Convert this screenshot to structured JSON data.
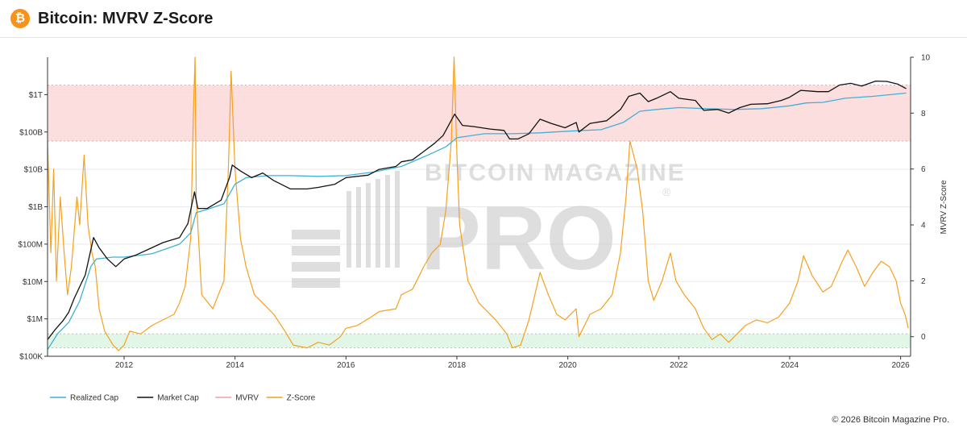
{
  "header": {
    "logo_glyph": "₿",
    "logo_icon": "bitcoin-logo-icon",
    "title": "Bitcoin: MVRV Z-Score"
  },
  "watermark": {
    "line1": "BITCOIN MAGAZINE",
    "line2": "PRO",
    "mark": "®"
  },
  "footer": {
    "copyright": "© 2026 Bitcoin Magazine Pro."
  },
  "colors": {
    "realized_cap": "#3fb1d6",
    "market_cap": "#111111",
    "mvrv": "#f2a0a8",
    "z_score": "#f5a020",
    "red_band": "#fddede",
    "green_band": "#e2f6e8",
    "grid": "#e9e9e9",
    "watermark": "#bfbfbf"
  },
  "chart_data": {
    "type": "line",
    "x_axis": {
      "ticks": [
        2012,
        2014,
        2016,
        2018,
        2020,
        2022,
        2024,
        2026
      ],
      "range": [
        2010.62,
        2026.18
      ]
    },
    "y_left": {
      "scale": "log",
      "tick_values": [
        100000,
        1000000,
        10000000,
        100000000,
        1000000000,
        10000000000,
        100000000000,
        1000000000000
      ],
      "tick_labels": [
        "$100K",
        "$1M",
        "$10M",
        "$100M",
        "$1B",
        "$10B",
        "$100B",
        "$1T"
      ],
      "range": [
        100000,
        10000000000000
      ]
    },
    "y_right": {
      "label": "MVRV Z-Score",
      "tick_values": [
        0,
        2,
        4,
        6,
        8,
        10
      ],
      "tick_labels": [
        "0",
        "2",
        "4",
        "6",
        "8",
        "10"
      ],
      "range": [
        -0.7,
        10
      ]
    },
    "bands": [
      {
        "name": "overvalued zone",
        "axis": "right",
        "from": 7.0,
        "to": 9.0,
        "color": "#fddede"
      },
      {
        "name": "undervalued zone",
        "axis": "right",
        "from": -0.4,
        "to": 0.1,
        "color": "#e2f6e8"
      }
    ],
    "legend": {
      "placement": "bottom-left",
      "entries": [
        {
          "label": "Realized Cap",
          "color": "#3fb1d6"
        },
        {
          "label": "Market Cap",
          "color": "#111111"
        },
        {
          "label": "MVRV",
          "color": "#f2a0a8"
        },
        {
          "label": "Z-Score",
          "color": "#f5a020"
        }
      ]
    },
    "series": [
      {
        "name": "Market Cap",
        "axis": "left",
        "color": "#111111",
        "points": [
          [
            2010.62,
            280000
          ],
          [
            2010.75,
            500000
          ],
          [
            2010.9,
            900000
          ],
          [
            2011.0,
            1500000
          ],
          [
            2011.1,
            3500000
          ],
          [
            2011.3,
            15000000
          ],
          [
            2011.45,
            150000000
          ],
          [
            2011.55,
            80000000
          ],
          [
            2011.7,
            40000000
          ],
          [
            2011.85,
            25000000
          ],
          [
            2012.0,
            40000000
          ],
          [
            2012.2,
            50000000
          ],
          [
            2012.5,
            80000000
          ],
          [
            2012.7,
            110000000
          ],
          [
            2013.0,
            150000000
          ],
          [
            2013.15,
            350000000
          ],
          [
            2013.27,
            2500000000
          ],
          [
            2013.33,
            900000000
          ],
          [
            2013.5,
            900000000
          ],
          [
            2013.75,
            1500000000
          ],
          [
            2013.9,
            6000000000
          ],
          [
            2013.95,
            13000000000
          ],
          [
            2014.1,
            9000000000
          ],
          [
            2014.3,
            6000000000
          ],
          [
            2014.5,
            8000000000
          ],
          [
            2014.7,
            5000000000
          ],
          [
            2015.0,
            3000000000
          ],
          [
            2015.3,
            3000000000
          ],
          [
            2015.5,
            3300000000
          ],
          [
            2015.8,
            4000000000
          ],
          [
            2016.0,
            6000000000
          ],
          [
            2016.4,
            7000000000
          ],
          [
            2016.6,
            10000000000
          ],
          [
            2016.9,
            12000000000
          ],
          [
            2017.0,
            16000000000
          ],
          [
            2017.2,
            18000000000
          ],
          [
            2017.4,
            30000000000
          ],
          [
            2017.6,
            50000000000
          ],
          [
            2017.75,
            80000000000
          ],
          [
            2017.96,
            300000000000
          ],
          [
            2018.1,
            150000000000
          ],
          [
            2018.3,
            140000000000
          ],
          [
            2018.6,
            120000000000
          ],
          [
            2018.85,
            110000000000
          ],
          [
            2018.95,
            65000000000
          ],
          [
            2019.1,
            65000000000
          ],
          [
            2019.3,
            90000000000
          ],
          [
            2019.5,
            220000000000
          ],
          [
            2019.7,
            170000000000
          ],
          [
            2019.95,
            130000000000
          ],
          [
            2020.15,
            180000000000
          ],
          [
            2020.2,
            100000000000
          ],
          [
            2020.4,
            170000000000
          ],
          [
            2020.7,
            200000000000
          ],
          [
            2020.95,
            400000000000
          ],
          [
            2021.1,
            900000000000
          ],
          [
            2021.3,
            1100000000000
          ],
          [
            2021.45,
            650000000000
          ],
          [
            2021.6,
            800000000000
          ],
          [
            2021.85,
            1200000000000
          ],
          [
            2022.0,
            800000000000
          ],
          [
            2022.3,
            700000000000
          ],
          [
            2022.45,
            380000000000
          ],
          [
            2022.7,
            400000000000
          ],
          [
            2022.9,
            320000000000
          ],
          [
            2023.1,
            450000000000
          ],
          [
            2023.3,
            550000000000
          ],
          [
            2023.6,
            570000000000
          ],
          [
            2023.85,
            700000000000
          ],
          [
            2024.0,
            850000000000
          ],
          [
            2024.2,
            1300000000000
          ],
          [
            2024.5,
            1200000000000
          ],
          [
            2024.7,
            1200000000000
          ],
          [
            2024.9,
            1800000000000
          ],
          [
            2025.1,
            2000000000000
          ],
          [
            2025.3,
            1700000000000
          ],
          [
            2025.55,
            2300000000000
          ],
          [
            2025.75,
            2250000000000
          ],
          [
            2025.95,
            1900000000000
          ],
          [
            2026.1,
            1450000000000
          ]
        ]
      },
      {
        "name": "Realized Cap",
        "axis": "left",
        "color": "#3fb1d6",
        "points": [
          [
            2010.62,
            150000
          ],
          [
            2010.8,
            400000
          ],
          [
            2011.0,
            800000
          ],
          [
            2011.2,
            3000000
          ],
          [
            2011.4,
            25000000
          ],
          [
            2011.5,
            40000000
          ],
          [
            2011.8,
            45000000
          ],
          [
            2012.0,
            45000000
          ],
          [
            2012.5,
            55000000
          ],
          [
            2013.0,
            100000000
          ],
          [
            2013.2,
            200000000
          ],
          [
            2013.3,
            700000000
          ],
          [
            2013.5,
            850000000
          ],
          [
            2013.8,
            1200000000
          ],
          [
            2014.0,
            4000000000
          ],
          [
            2014.2,
            6000000000
          ],
          [
            2014.6,
            6800000000
          ],
          [
            2015.0,
            6800000000
          ],
          [
            2015.5,
            6500000000
          ],
          [
            2016.0,
            6800000000
          ],
          [
            2016.5,
            8500000000
          ],
          [
            2017.0,
            12000000000
          ],
          [
            2017.5,
            25000000000
          ],
          [
            2017.8,
            40000000000
          ],
          [
            2018.0,
            70000000000
          ],
          [
            2018.5,
            90000000000
          ],
          [
            2019.0,
            90000000000
          ],
          [
            2019.5,
            95000000000
          ],
          [
            2020.0,
            105000000000
          ],
          [
            2020.6,
            115000000000
          ],
          [
            2021.0,
            180000000000
          ],
          [
            2021.3,
            360000000000
          ],
          [
            2021.6,
            400000000000
          ],
          [
            2022.0,
            450000000000
          ],
          [
            2022.5,
            420000000000
          ],
          [
            2023.0,
            400000000000
          ],
          [
            2023.5,
            420000000000
          ],
          [
            2024.0,
            500000000000
          ],
          [
            2024.3,
            600000000000
          ],
          [
            2024.6,
            620000000000
          ],
          [
            2025.0,
            800000000000
          ],
          [
            2025.5,
            900000000000
          ],
          [
            2026.1,
            1100000000000
          ]
        ]
      },
      {
        "name": "Z-Score",
        "axis": "right",
        "color": "#f5a020",
        "points": [
          [
            2010.62,
            7.0
          ],
          [
            2010.68,
            3.0
          ],
          [
            2010.73,
            6.0
          ],
          [
            2010.78,
            2.0
          ],
          [
            2010.85,
            5.0
          ],
          [
            2010.92,
            3.0
          ],
          [
            2010.98,
            1.5
          ],
          [
            2011.05,
            2.5
          ],
          [
            2011.15,
            5.0
          ],
          [
            2011.2,
            4.0
          ],
          [
            2011.28,
            6.5
          ],
          [
            2011.35,
            4.0
          ],
          [
            2011.42,
            3.0
          ],
          [
            2011.48,
            2.5
          ],
          [
            2011.55,
            1.0
          ],
          [
            2011.65,
            0.2
          ],
          [
            2011.8,
            -0.3
          ],
          [
            2011.9,
            -0.5
          ],
          [
            2012.0,
            -0.3
          ],
          [
            2012.1,
            0.2
          ],
          [
            2012.3,
            0.1
          ],
          [
            2012.5,
            0.4
          ],
          [
            2012.7,
            0.6
          ],
          [
            2012.9,
            0.8
          ],
          [
            2013.0,
            1.2
          ],
          [
            2013.1,
            1.8
          ],
          [
            2013.2,
            3.5
          ],
          [
            2013.25,
            8.0
          ],
          [
            2013.28,
            10.0
          ],
          [
            2013.3,
            5.0
          ],
          [
            2013.4,
            1.5
          ],
          [
            2013.6,
            1.0
          ],
          [
            2013.8,
            2.0
          ],
          [
            2013.88,
            6.0
          ],
          [
            2013.93,
            9.5
          ],
          [
            2014.0,
            6.0
          ],
          [
            2014.1,
            3.5
          ],
          [
            2014.2,
            2.5
          ],
          [
            2014.35,
            1.5
          ],
          [
            2014.5,
            1.2
          ],
          [
            2014.7,
            0.8
          ],
          [
            2014.9,
            0.2
          ],
          [
            2015.05,
            -0.3
          ],
          [
            2015.3,
            -0.4
          ],
          [
            2015.5,
            -0.2
          ],
          [
            2015.7,
            -0.3
          ],
          [
            2015.9,
            0.0
          ],
          [
            2016.0,
            0.3
          ],
          [
            2016.2,
            0.4
          ],
          [
            2016.45,
            0.7
          ],
          [
            2016.6,
            0.9
          ],
          [
            2016.9,
            1.0
          ],
          [
            2017.0,
            1.5
          ],
          [
            2017.2,
            1.7
          ],
          [
            2017.4,
            2.5
          ],
          [
            2017.55,
            3.0
          ],
          [
            2017.7,
            3.3
          ],
          [
            2017.8,
            4.5
          ],
          [
            2017.9,
            7.0
          ],
          [
            2017.95,
            10.0
          ],
          [
            2018.0,
            6.5
          ],
          [
            2018.05,
            4.0
          ],
          [
            2018.2,
            2.0
          ],
          [
            2018.4,
            1.2
          ],
          [
            2018.7,
            0.6
          ],
          [
            2018.9,
            0.1
          ],
          [
            2019.0,
            -0.4
          ],
          [
            2019.15,
            -0.3
          ],
          [
            2019.3,
            0.6
          ],
          [
            2019.5,
            2.3
          ],
          [
            2019.65,
            1.5
          ],
          [
            2019.8,
            0.8
          ],
          [
            2019.95,
            0.6
          ],
          [
            2020.15,
            1.0
          ],
          [
            2020.2,
            0.0
          ],
          [
            2020.4,
            0.8
          ],
          [
            2020.6,
            1.0
          ],
          [
            2020.8,
            1.5
          ],
          [
            2020.95,
            3.0
          ],
          [
            2021.05,
            5.0
          ],
          [
            2021.12,
            7.0
          ],
          [
            2021.25,
            6.0
          ],
          [
            2021.35,
            4.5
          ],
          [
            2021.45,
            2.0
          ],
          [
            2021.55,
            1.3
          ],
          [
            2021.7,
            2.0
          ],
          [
            2021.85,
            3.0
          ],
          [
            2021.95,
            2.0
          ],
          [
            2022.1,
            1.5
          ],
          [
            2022.3,
            1.0
          ],
          [
            2022.45,
            0.3
          ],
          [
            2022.6,
            -0.1
          ],
          [
            2022.75,
            0.1
          ],
          [
            2022.9,
            -0.2
          ],
          [
            2023.05,
            0.1
          ],
          [
            2023.2,
            0.4
          ],
          [
            2023.4,
            0.6
          ],
          [
            2023.6,
            0.5
          ],
          [
            2023.8,
            0.7
          ],
          [
            2024.0,
            1.2
          ],
          [
            2024.15,
            2.0
          ],
          [
            2024.25,
            2.9
          ],
          [
            2024.4,
            2.2
          ],
          [
            2024.6,
            1.6
          ],
          [
            2024.75,
            1.8
          ],
          [
            2024.95,
            2.7
          ],
          [
            2025.05,
            3.1
          ],
          [
            2025.2,
            2.5
          ],
          [
            2025.35,
            1.8
          ],
          [
            2025.5,
            2.3
          ],
          [
            2025.65,
            2.7
          ],
          [
            2025.8,
            2.5
          ],
          [
            2025.92,
            2.0
          ],
          [
            2026.0,
            1.2
          ],
          [
            2026.08,
            0.8
          ],
          [
            2026.14,
            0.3
          ]
        ]
      }
    ]
  }
}
